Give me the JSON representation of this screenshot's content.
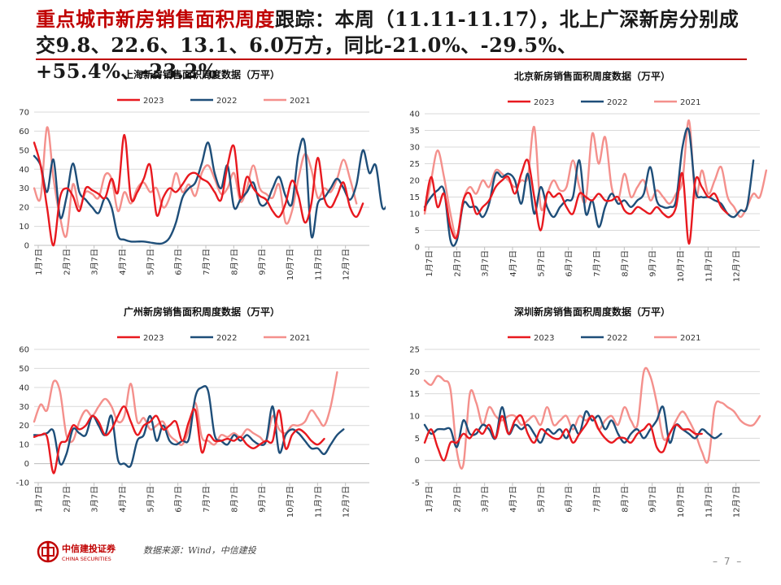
{
  "headline": {
    "highlight": "重点城市新房销售面积周度",
    "text": "跟踪：本周（11.11-11.17），北上广深新房分别成交9.8、22.6、13.1、6.0万方，同比-21.0%、-29.5%、+55.4%、-23.2%"
  },
  "colors": {
    "accent": "#c00000",
    "y2023": "#e8191f",
    "y2022": "#1e4e79",
    "y2021": "#f4908c"
  },
  "chart_data": [
    {
      "type": "line",
      "title": "上海新房销售面积周度数据（万平）",
      "x_tick_labels": [
        "1月7日",
        "2月7日",
        "3月7日",
        "4月7日",
        "5月7日",
        "6月7日",
        "7月7日",
        "8月7日",
        "9月7日",
        "10月7日",
        "11月7日",
        "12月7日"
      ],
      "ylim": [
        0,
        70
      ],
      "y_ticks": [
        0,
        10,
        20,
        30,
        40,
        50,
        60,
        70
      ],
      "legend": "top-center",
      "series": [
        {
          "name": "2023",
          "values": [
            54,
            42,
            20,
            0,
            25,
            30,
            26,
            18,
            30,
            29,
            27,
            25,
            35,
            28,
            58,
            25,
            28,
            35,
            42,
            16,
            25,
            30,
            28,
            32,
            37,
            38,
            35,
            33,
            28,
            24,
            42,
            52,
            25,
            36,
            30,
            26,
            24,
            18,
            15,
            22,
            34,
            26,
            12,
            22,
            46,
            25,
            20,
            26,
            33,
            20,
            15,
            22
          ]
        },
        {
          "name": "2022",
          "values": [
            47,
            42,
            28,
            45,
            15,
            25,
            43,
            28,
            24,
            20,
            17,
            25,
            20,
            5,
            3,
            2,
            2,
            2,
            1.5,
            1,
            1.2,
            4,
            12,
            25,
            30,
            33,
            43,
            54,
            38,
            30,
            42,
            20,
            24,
            28,
            33,
            22,
            22,
            30,
            36,
            26,
            22,
            48,
            53,
            5,
            22,
            25,
            30,
            35,
            30,
            24,
            32,
            50,
            38,
            42,
            20,
            23
          ]
        },
        {
          "name": "2021",
          "values": [
            30,
            25,
            62,
            35,
            15,
            5,
            32,
            20,
            28,
            27,
            25,
            37,
            35,
            18,
            28,
            22,
            30,
            33,
            28,
            30,
            20,
            25,
            38,
            28,
            32,
            26,
            38,
            42,
            35,
            27,
            30,
            38,
            23,
            30,
            42,
            30,
            27,
            25,
            32,
            12,
            18,
            35,
            48,
            40,
            25,
            30,
            28,
            35,
            45,
            35,
            22
          ]
        }
      ]
    },
    {
      "type": "line",
      "title": "北京新房销售面积周度数据（万平）",
      "x_tick_labels": [
        "1月7日",
        "2月7日",
        "3月7日",
        "4月7日",
        "5月7日",
        "6月7日",
        "7月7日",
        "8月7日",
        "9月7日",
        "10月7日",
        "11月7日",
        "12月7日"
      ],
      "ylim": [
        0,
        40
      ],
      "y_ticks": [
        0,
        5,
        10,
        15,
        20,
        25,
        30,
        35,
        40
      ],
      "legend": "top-center",
      "series": [
        {
          "name": "2023",
          "values": [
            11,
            21,
            12,
            16,
            6,
            3,
            14,
            16,
            10,
            12,
            14,
            18,
            20,
            21,
            16,
            22,
            26,
            15,
            5,
            16,
            15,
            16,
            12,
            10,
            16,
            15,
            14,
            16,
            14,
            14,
            15,
            11,
            10,
            12,
            11,
            10,
            12,
            10,
            9,
            12,
            22,
            1,
            20,
            18,
            15,
            16,
            12,
            10
          ]
        },
        {
          "name": "2022",
          "values": [
            12,
            15,
            17,
            17,
            2,
            2,
            13,
            12,
            12,
            9,
            13,
            22,
            21,
            22,
            20,
            13,
            22,
            10,
            18,
            12,
            9,
            12,
            14,
            15,
            26,
            10,
            14,
            6,
            12,
            16,
            13,
            14,
            12,
            14,
            16,
            24,
            14,
            12,
            12,
            14,
            30,
            35,
            17,
            15,
            15,
            14,
            13,
            10,
            9,
            11,
            12,
            26
          ]
        },
        {
          "name": "2021",
          "values": [
            10,
            20,
            29,
            21,
            10,
            3,
            14,
            18,
            16,
            20,
            18,
            23,
            22,
            20,
            18,
            20,
            21,
            36,
            12,
            16,
            20,
            17,
            18,
            26,
            18,
            14,
            34,
            25,
            33,
            18,
            14,
            22,
            15,
            18,
            20,
            14,
            17,
            15,
            13,
            16,
            20,
            38,
            15,
            23,
            16,
            20,
            24,
            15,
            12,
            9,
            12,
            16,
            15,
            23
          ]
        }
      ]
    },
    {
      "type": "line",
      "title": "广州新房销售面积周度数据（万平）",
      "x_tick_labels": [
        "1月7日",
        "2月7日",
        "3月7日",
        "4月7日",
        "5月7日",
        "6月7日",
        "7月7日",
        "8月7日",
        "9月7日",
        "10月7日",
        "11月7日",
        "12月7日"
      ],
      "ylim": [
        -10,
        60
      ],
      "y_ticks": [
        -10,
        0,
        10,
        20,
        30,
        40,
        50,
        60
      ],
      "legend": "top-center",
      "series": [
        {
          "name": "2023",
          "values": [
            14,
            15,
            14,
            -5,
            10,
            12,
            20,
            18,
            20,
            25,
            22,
            15,
            18,
            25,
            30,
            22,
            15,
            20,
            22,
            25,
            18,
            20,
            22,
            12,
            22,
            28,
            6,
            15,
            12,
            12,
            13,
            12,
            14,
            10,
            8,
            10,
            12,
            12,
            28,
            8,
            15,
            18,
            16,
            12,
            10,
            13
          ]
        },
        {
          "name": "2022",
          "values": [
            15,
            15,
            16,
            17,
            0,
            5,
            18,
            16,
            15,
            25,
            20,
            15,
            25,
            2,
            0,
            -1,
            12,
            15,
            25,
            12,
            20,
            12,
            10,
            12,
            13,
            35,
            40,
            38,
            15,
            12,
            10,
            15,
            12,
            15,
            12,
            10,
            12,
            30,
            6,
            15,
            18,
            16,
            12,
            8,
            8,
            5,
            10,
            15,
            18
          ]
        },
        {
          "name": "2021",
          "values": [
            22,
            31,
            28,
            43,
            38,
            15,
            12,
            22,
            28,
            25,
            30,
            34,
            30,
            22,
            25,
            42,
            22,
            24,
            18,
            20,
            22,
            15,
            12,
            10,
            18,
            32,
            14,
            12,
            10,
            15,
            14,
            16,
            14,
            18,
            16,
            14,
            12,
            25,
            18,
            16,
            20,
            20,
            22,
            28,
            24,
            20,
            30,
            48
          ]
        }
      ]
    },
    {
      "type": "line",
      "title": "深圳新房销售面积周度数据（万平）",
      "x_tick_labels": [
        "1月7日",
        "2月7日",
        "3月7日",
        "4月7日",
        "5月7日",
        "6月7日",
        "7月7日",
        "8月7日",
        "9月7日",
        "10月7日",
        "11月7日",
        "12月7日"
      ],
      "ylim": [
        -5,
        25
      ],
      "y_ticks": [
        -5,
        0,
        5,
        10,
        15,
        20,
        25
      ],
      "legend": "top-center",
      "series": [
        {
          "name": "2023",
          "values": [
            4,
            7,
            3,
            0,
            4,
            4,
            6,
            5,
            7,
            6,
            8,
            5,
            10,
            6,
            9,
            10,
            6,
            4,
            7,
            6,
            5,
            5,
            7,
            4,
            6,
            8,
            10,
            7,
            5,
            4,
            5,
            5,
            4,
            6,
            7,
            8,
            3,
            2,
            6,
            8,
            7,
            7,
            6,
            6
          ]
        },
        {
          "name": "2022",
          "values": [
            8,
            6,
            7,
            7,
            7,
            3,
            9,
            6,
            6,
            8,
            7,
            5,
            12,
            6,
            8,
            7,
            8,
            6,
            4,
            7,
            6,
            7,
            5,
            8,
            6,
            11,
            9,
            10,
            7,
            9,
            6,
            4,
            6,
            7,
            5,
            7,
            9,
            12,
            4,
            8,
            7,
            6,
            5,
            7,
            6,
            5,
            6
          ]
        },
        {
          "name": "2021",
          "values": [
            18,
            17,
            19,
            18,
            16,
            2,
            -1,
            15,
            13,
            8,
            12,
            10,
            9,
            10,
            10,
            8,
            9,
            10,
            8,
            12,
            8,
            9,
            10,
            7,
            10,
            9,
            10,
            7,
            9,
            10,
            8,
            12,
            9,
            8,
            20,
            19,
            13,
            5,
            6,
            9,
            11,
            9,
            6,
            2,
            0,
            12,
            13,
            12,
            11,
            9,
            8,
            8,
            10
          ]
        }
      ]
    }
  ],
  "footer": {
    "logo_cn": "中信建投证券",
    "logo_en": "CHINA SECURITIES",
    "source": "数据来源：Wind，中信建投",
    "page": "– 7 –"
  }
}
